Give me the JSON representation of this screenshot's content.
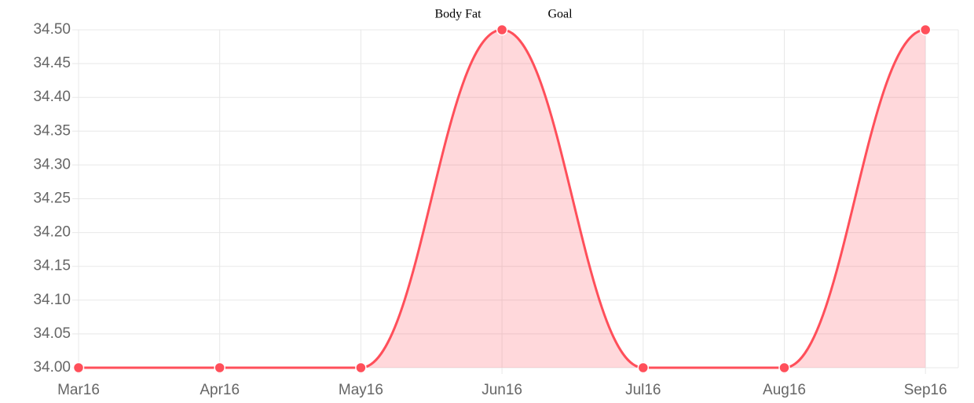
{
  "chart_data": {
    "type": "line",
    "categories": [
      "Mar16",
      "Apr16",
      "May16",
      "Jun16",
      "Jul16",
      "Aug16",
      "Sep16"
    ],
    "series": [
      {
        "name": "Body Fat",
        "color": "#ff4f5a",
        "values": [
          34,
          34,
          34,
          34.5,
          34,
          34,
          34.5
        ]
      },
      {
        "name": "Goal",
        "values": [
          null,
          null,
          null,
          null,
          null,
          null,
          null
        ]
      }
    ],
    "ylim": [
      34,
      34.5
    ],
    "yticks": [
      {
        "value": 34,
        "label": "34.00"
      },
      {
        "value": 34.05,
        "label": "34.05"
      },
      {
        "value": 34.1,
        "label": "34.10"
      },
      {
        "value": 34.15,
        "label": "34.15"
      },
      {
        "value": 34.2,
        "label": "34.20"
      },
      {
        "value": 34.25,
        "label": "34.25"
      },
      {
        "value": 34.3,
        "label": "34.30"
      },
      {
        "value": 34.35,
        "label": "34.35"
      },
      {
        "value": 34.4,
        "label": "34.40"
      },
      {
        "value": 34.45,
        "label": "34.45"
      },
      {
        "value": 34.5,
        "label": "34.50"
      }
    ],
    "grid": true,
    "fill": true
  }
}
